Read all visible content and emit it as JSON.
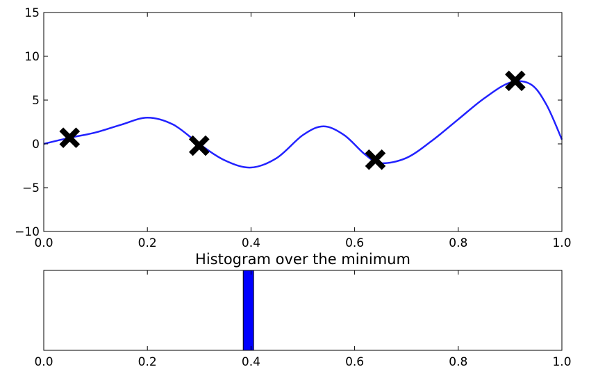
{
  "chart_data": [
    {
      "type": "line",
      "title": "",
      "xlabel": "",
      "ylabel": "",
      "xlim": [
        0.0,
        1.0
      ],
      "ylim": [
        -10,
        15
      ],
      "xticks": [
        "0.0",
        "0.2",
        "0.4",
        "0.6",
        "0.8",
        "1.0"
      ],
      "yticks": [
        "15",
        "10",
        "5",
        "0",
        "−5",
        "−10"
      ],
      "grid": false,
      "legend": "none",
      "series": [
        {
          "color": "#2222ff",
          "x": [
            0.0,
            0.05,
            0.1,
            0.15,
            0.2,
            0.25,
            0.3,
            0.35,
            0.4,
            0.45,
            0.5,
            0.54,
            0.58,
            0.62,
            0.65,
            0.7,
            0.75,
            0.8,
            0.85,
            0.9,
            0.94,
            0.97,
            1.0
          ],
          "y": [
            0.0,
            0.7,
            1.3,
            2.2,
            3.0,
            2.2,
            0.0,
            -1.9,
            -2.7,
            -1.6,
            1.0,
            2.0,
            1.0,
            -1.2,
            -2.2,
            -1.6,
            0.4,
            2.8,
            5.2,
            7.0,
            6.8,
            4.5,
            0.5
          ]
        }
      ],
      "markers": {
        "color": "#000000",
        "x": [
          0.05,
          0.3,
          0.64,
          0.91
        ],
        "y": [
          0.7,
          -0.2,
          -1.8,
          7.2
        ]
      }
    },
    {
      "type": "bar",
      "title": "Histogram over the minimum",
      "xlim": [
        0.0,
        1.0
      ],
      "xticks": [
        "0.0",
        "0.2",
        "0.4",
        "0.6",
        "0.8",
        "1.0"
      ],
      "color": "#0000ff",
      "bins": [
        {
          "start": 0.385,
          "end": 0.405,
          "count": 1
        }
      ]
    }
  ]
}
